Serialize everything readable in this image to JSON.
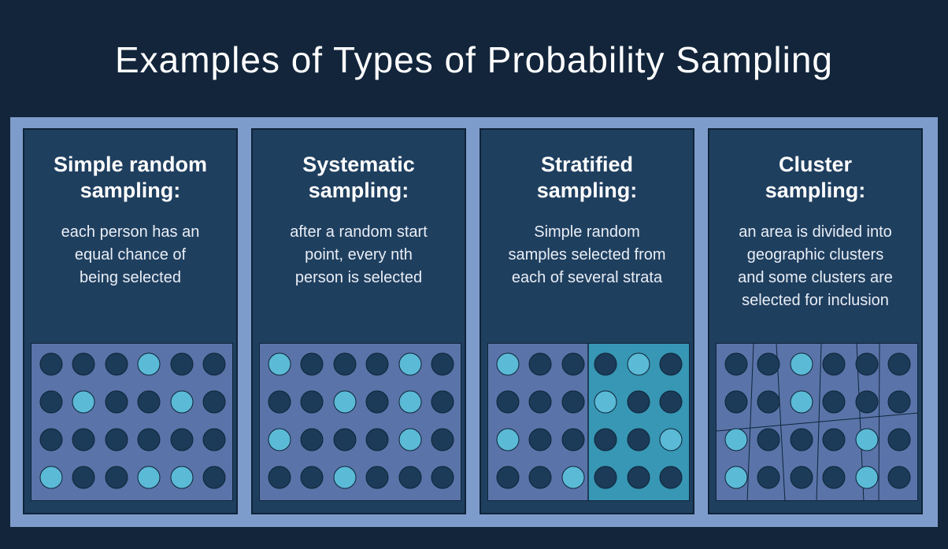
{
  "title": "Examples of Types of Probability Sampling",
  "colors": {
    "background": "#12253b",
    "frame": "#7e9ccb",
    "panel": "#1f3f5f",
    "grid_bg": "#5a74a9",
    "grid_bg_alt": "#3797b4",
    "dot_selected": "#5bbad6",
    "dot_unselected": "#1b3b58",
    "line": "#0f2439"
  },
  "panels": [
    {
      "heading_line1": "Simple random",
      "heading_line2": "sampling:",
      "desc_lines": [
        "each person has an",
        "equal chance of",
        "being selected"
      ],
      "grid": [
        [
          0,
          0,
          0,
          1,
          0,
          0
        ],
        [
          0,
          1,
          0,
          0,
          1,
          0
        ],
        [
          0,
          0,
          0,
          0,
          0,
          0
        ],
        [
          1,
          0,
          0,
          1,
          1,
          0
        ]
      ]
    },
    {
      "heading_line1": "Systematic",
      "heading_line2": "sampling:",
      "desc_lines": [
        "after a random start",
        "point, every nth",
        "person is selected"
      ],
      "grid": [
        [
          1,
          0,
          0,
          0,
          1,
          0
        ],
        [
          0,
          0,
          1,
          0,
          1,
          0
        ],
        [
          1,
          0,
          0,
          0,
          1,
          0
        ],
        [
          0,
          0,
          1,
          0,
          0,
          0
        ]
      ]
    },
    {
      "heading_line1": "Stratified",
      "heading_line2": "sampling:",
      "desc_lines": [
        "Simple random",
        "samples selected from",
        "each of several strata"
      ],
      "grid": [
        [
          1,
          0,
          0,
          0,
          1,
          0
        ],
        [
          0,
          0,
          0,
          1,
          0,
          0
        ],
        [
          1,
          0,
          0,
          0,
          0,
          1
        ],
        [
          0,
          0,
          1,
          0,
          0,
          0
        ]
      ]
    },
    {
      "heading_line1": "Cluster",
      "heading_line2": "sampling:",
      "desc_lines": [
        "an area is divided into",
        "geographic clusters",
        "and some clusters are",
        "selected for inclusion"
      ],
      "grid": [
        [
          0,
          0,
          1,
          0,
          0,
          0
        ],
        [
          0,
          0,
          1,
          0,
          0,
          0
        ],
        [
          1,
          0,
          0,
          0,
          1,
          0
        ],
        [
          1,
          0,
          0,
          0,
          1,
          0
        ]
      ]
    }
  ]
}
